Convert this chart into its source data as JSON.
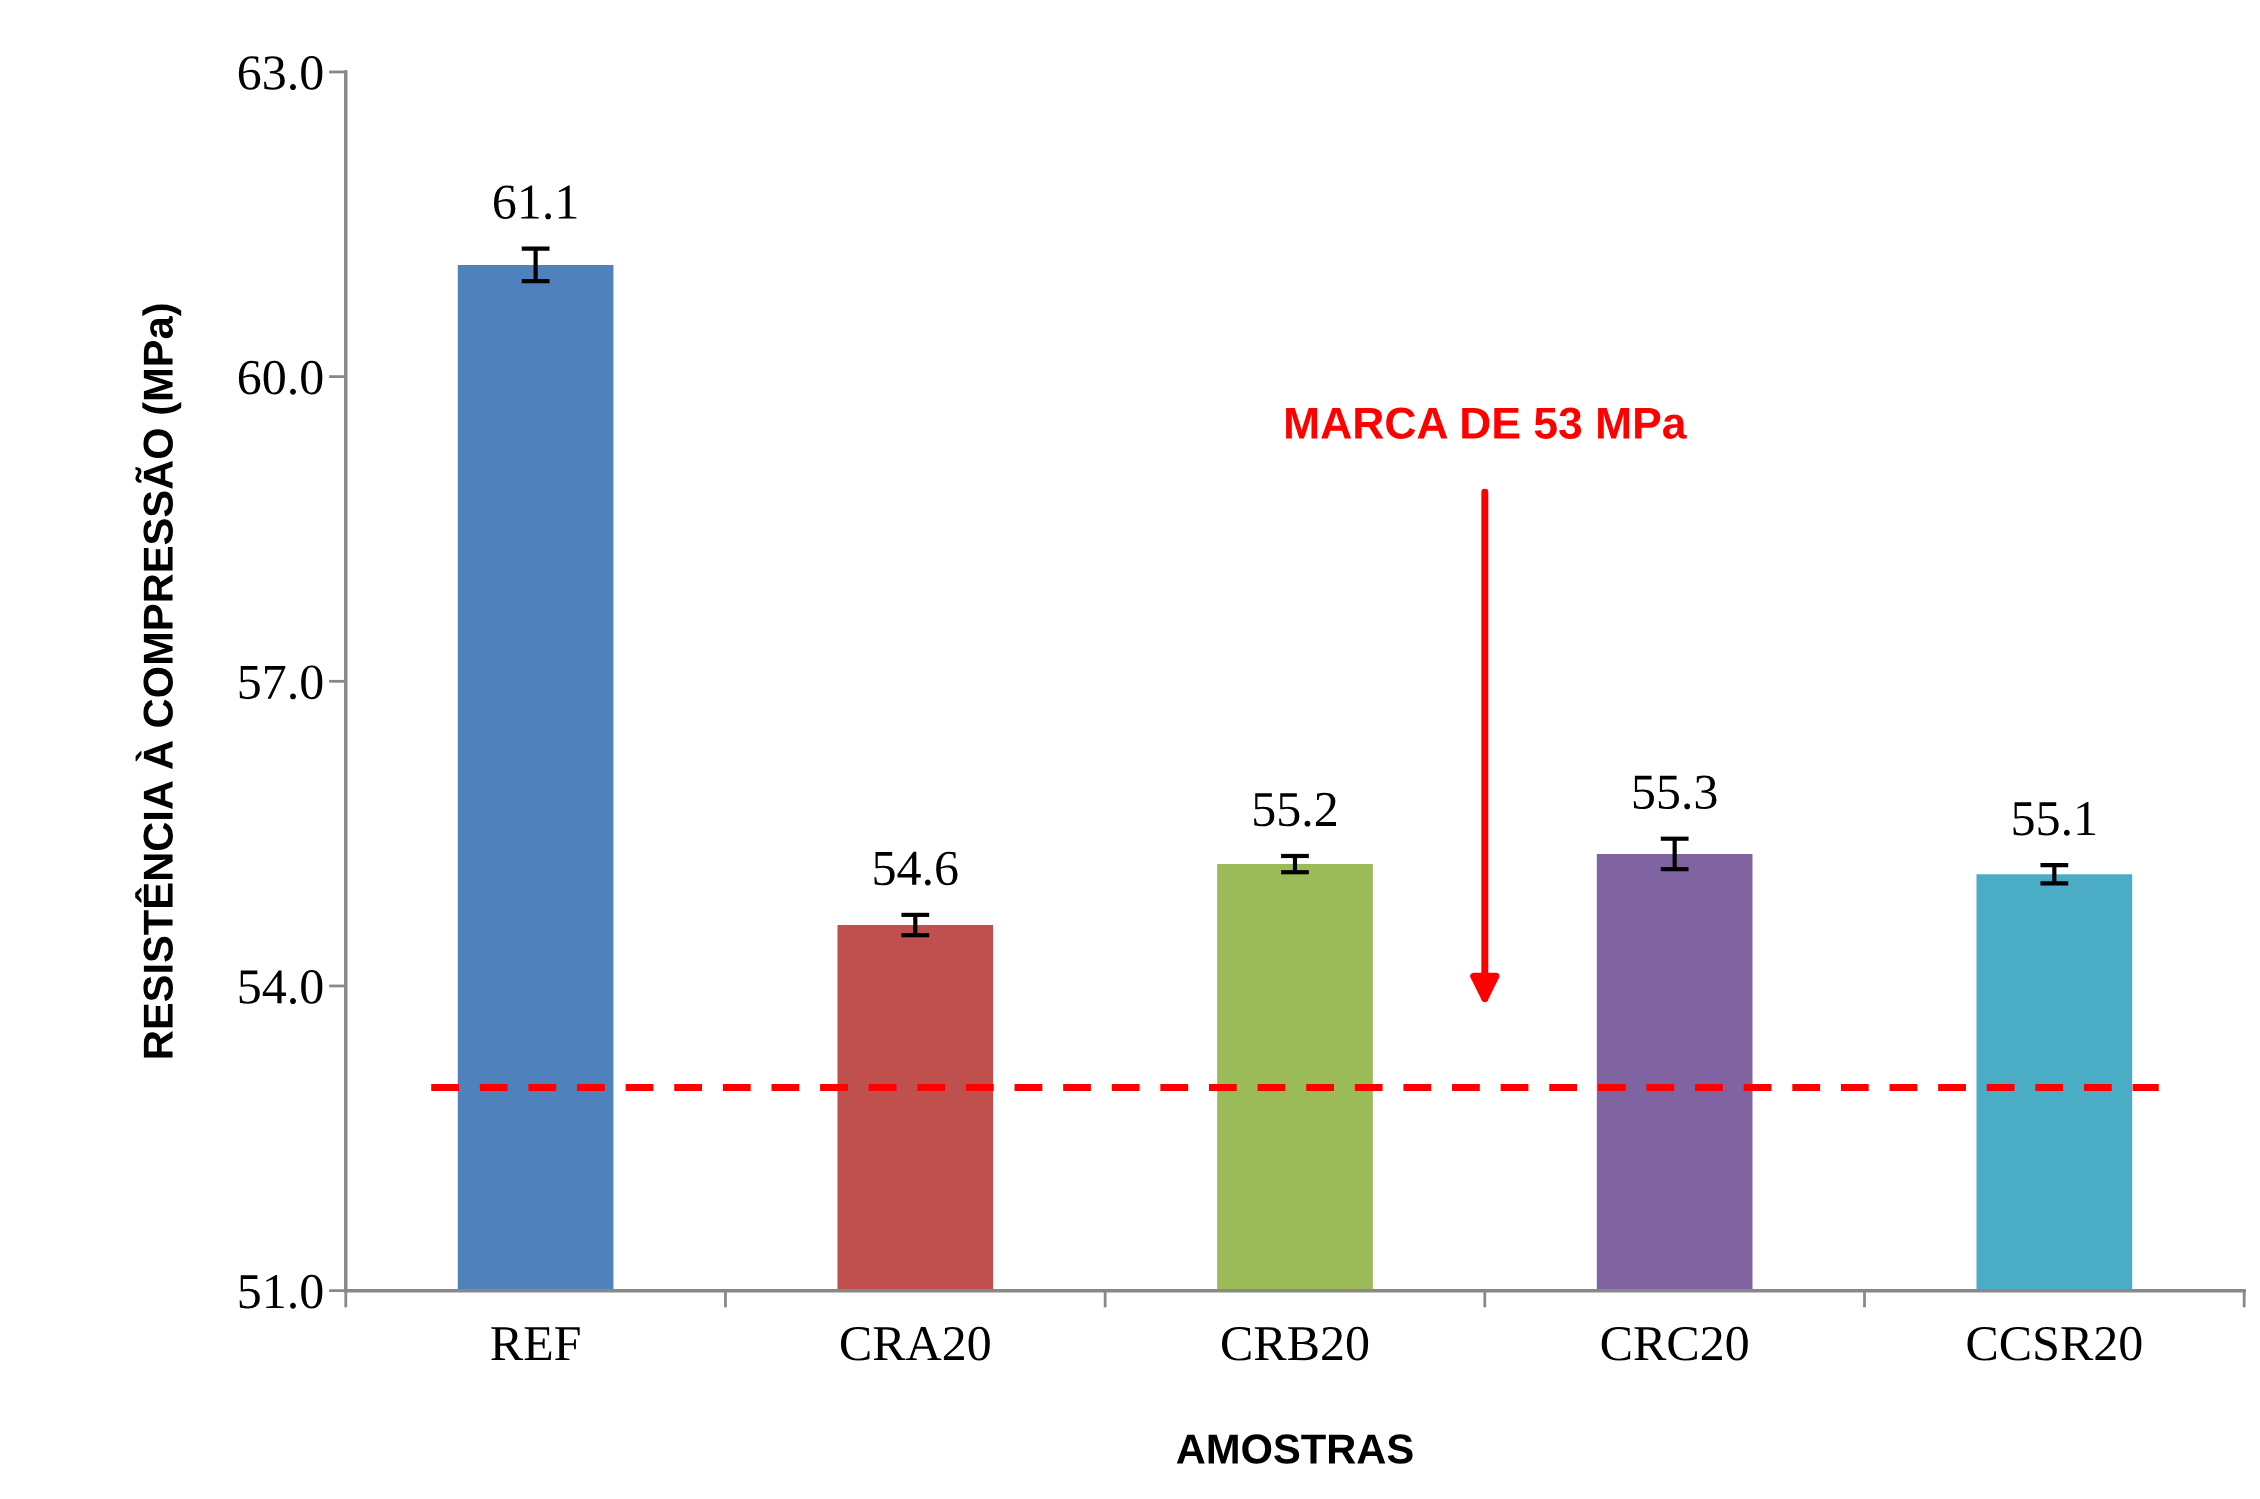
{
  "chart_data": {
    "type": "bar",
    "xlabel": "AMOSTRAS",
    "ylabel": "RESISTÊNCIA À COMPRESSÃO (MPa)",
    "categories": [
      "REF",
      "CRA20",
      "CRB20",
      "CRC20",
      "CCSR20"
    ],
    "values": [
      61.1,
      54.6,
      55.2,
      55.3,
      55.1
    ],
    "colors": [
      "#4f81bd",
      "#c0504d",
      "#9bbb59",
      "#8064a2",
      "#4bacc6"
    ],
    "errors": [
      0.16,
      0.1,
      0.08,
      0.15,
      0.09
    ],
    "ylim": [
      51,
      63
    ],
    "yticks": [
      {
        "value": 51,
        "label": "51.0"
      },
      {
        "value": 54,
        "label": "54.0"
      },
      {
        "value": 57,
        "label": "57.0"
      },
      {
        "value": 60,
        "label": "60.0"
      },
      {
        "value": 63,
        "label": "63.0"
      }
    ],
    "data_labels": true,
    "grid": false,
    "legend": false,
    "ref_lines": [
      {
        "axis": "y",
        "value": 53,
        "label": "MARCA DE 53 MPa",
        "color": "#ff0000",
        "line_style": "dashed"
      }
    ]
  }
}
